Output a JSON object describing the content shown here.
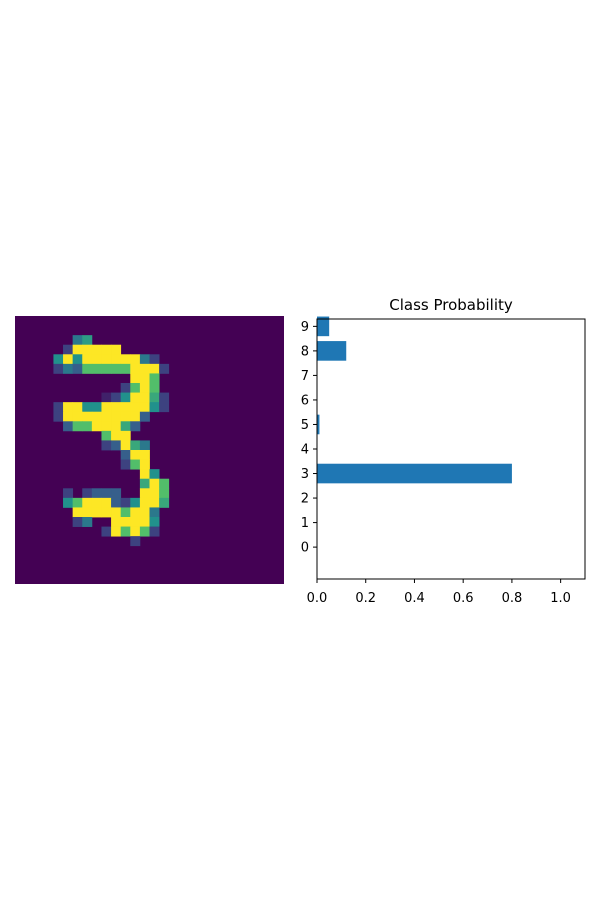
{
  "chart_data": [
    {
      "type": "heatmap",
      "title": "",
      "colormap": "viridis",
      "axes_visible": false,
      "rows": 28,
      "cols": 28,
      "value_scale": "0 to 1",
      "pixels": [
        {
          "r": 2,
          "c": 6,
          "v": 0.4
        },
        {
          "r": 2,
          "c": 7,
          "v": 0.55
        },
        {
          "r": 3,
          "c": 5,
          "v": 0.2
        },
        {
          "r": 3,
          "c": 6,
          "v": 1.0
        },
        {
          "r": 3,
          "c": 7,
          "v": 1.0
        },
        {
          "r": 3,
          "c": 8,
          "v": 1.0
        },
        {
          "r": 3,
          "c": 9,
          "v": 1.0
        },
        {
          "r": 3,
          "c": 10,
          "v": 1.0
        },
        {
          "r": 4,
          "c": 4,
          "v": 0.5
        },
        {
          "r": 4,
          "c": 5,
          "v": 1.0
        },
        {
          "r": 4,
          "c": 6,
          "v": 0.5
        },
        {
          "r": 4,
          "c": 7,
          "v": 1.0
        },
        {
          "r": 4,
          "c": 8,
          "v": 1.0
        },
        {
          "r": 4,
          "c": 9,
          "v": 1.0
        },
        {
          "r": 4,
          "c": 10,
          "v": 1.0
        },
        {
          "r": 4,
          "c": 11,
          "v": 1.0
        },
        {
          "r": 4,
          "c": 12,
          "v": 1.0
        },
        {
          "r": 4,
          "c": 13,
          "v": 0.4
        },
        {
          "r": 4,
          "c": 14,
          "v": 0.2
        },
        {
          "r": 5,
          "c": 4,
          "v": 0.2
        },
        {
          "r": 5,
          "c": 5,
          "v": 0.4
        },
        {
          "r": 5,
          "c": 6,
          "v": 0.3
        },
        {
          "r": 5,
          "c": 7,
          "v": 0.7
        },
        {
          "r": 5,
          "c": 8,
          "v": 0.7
        },
        {
          "r": 5,
          "c": 9,
          "v": 0.7
        },
        {
          "r": 5,
          "c": 10,
          "v": 0.7
        },
        {
          "r": 5,
          "c": 11,
          "v": 0.7
        },
        {
          "r": 5,
          "c": 12,
          "v": 1.0
        },
        {
          "r": 5,
          "c": 13,
          "v": 1.0
        },
        {
          "r": 5,
          "c": 14,
          "v": 1.0
        },
        {
          "r": 5,
          "c": 15,
          "v": 0.2
        },
        {
          "r": 6,
          "c": 12,
          "v": 1.0
        },
        {
          "r": 6,
          "c": 13,
          "v": 1.0
        },
        {
          "r": 6,
          "c": 14,
          "v": 0.7
        },
        {
          "r": 7,
          "c": 11,
          "v": 0.2
        },
        {
          "r": 7,
          "c": 12,
          "v": 0.7
        },
        {
          "r": 7,
          "c": 13,
          "v": 1.0
        },
        {
          "r": 7,
          "c": 14,
          "v": 0.7
        },
        {
          "r": 8,
          "c": 9,
          "v": 0.1
        },
        {
          "r": 8,
          "c": 10,
          "v": 0.2
        },
        {
          "r": 8,
          "c": 11,
          "v": 0.5
        },
        {
          "r": 8,
          "c": 12,
          "v": 1.0
        },
        {
          "r": 8,
          "c": 13,
          "v": 1.0
        },
        {
          "r": 8,
          "c": 14,
          "v": 0.6
        },
        {
          "r": 8,
          "c": 15,
          "v": 0.2
        },
        {
          "r": 9,
          "c": 4,
          "v": 0.2
        },
        {
          "r": 9,
          "c": 5,
          "v": 1.0
        },
        {
          "r": 9,
          "c": 6,
          "v": 1.0
        },
        {
          "r": 9,
          "c": 7,
          "v": 0.5
        },
        {
          "r": 9,
          "c": 8,
          "v": 0.5
        },
        {
          "r": 9,
          "c": 9,
          "v": 1.0
        },
        {
          "r": 9,
          "c": 10,
          "v": 1.0
        },
        {
          "r": 9,
          "c": 11,
          "v": 1.0
        },
        {
          "r": 9,
          "c": 12,
          "v": 1.0
        },
        {
          "r": 9,
          "c": 13,
          "v": 1.0
        },
        {
          "r": 9,
          "c": 14,
          "v": 0.5
        },
        {
          "r": 9,
          "c": 15,
          "v": 0.2
        },
        {
          "r": 10,
          "c": 4,
          "v": 0.2
        },
        {
          "r": 10,
          "c": 5,
          "v": 1.0
        },
        {
          "r": 10,
          "c": 6,
          "v": 1.0
        },
        {
          "r": 10,
          "c": 7,
          "v": 1.0
        },
        {
          "r": 10,
          "c": 8,
          "v": 1.0
        },
        {
          "r": 10,
          "c": 9,
          "v": 1.0
        },
        {
          "r": 10,
          "c": 10,
          "v": 1.0
        },
        {
          "r": 10,
          "c": 11,
          "v": 1.0
        },
        {
          "r": 10,
          "c": 12,
          "v": 1.0
        },
        {
          "r": 10,
          "c": 13,
          "v": 0.3
        },
        {
          "r": 11,
          "c": 5,
          "v": 0.3
        },
        {
          "r": 11,
          "c": 6,
          "v": 0.7
        },
        {
          "r": 11,
          "c": 7,
          "v": 0.7
        },
        {
          "r": 11,
          "c": 8,
          "v": 1.0
        },
        {
          "r": 11,
          "c": 9,
          "v": 1.0
        },
        {
          "r": 11,
          "c": 10,
          "v": 1.0
        },
        {
          "r": 11,
          "c": 11,
          "v": 0.6
        },
        {
          "r": 11,
          "c": 12,
          "v": 0.3
        },
        {
          "r": 12,
          "c": 9,
          "v": 0.7
        },
        {
          "r": 12,
          "c": 10,
          "v": 1.0
        },
        {
          "r": 12,
          "c": 11,
          "v": 1.0
        },
        {
          "r": 13,
          "c": 9,
          "v": 0.2
        },
        {
          "r": 13,
          "c": 10,
          "v": 0.3
        },
        {
          "r": 13,
          "c": 11,
          "v": 1.0
        },
        {
          "r": 13,
          "c": 12,
          "v": 0.6
        },
        {
          "r": 13,
          "c": 13,
          "v": 0.4
        },
        {
          "r": 14,
          "c": 11,
          "v": 0.3
        },
        {
          "r": 14,
          "c": 12,
          "v": 1.0
        },
        {
          "r": 14,
          "c": 13,
          "v": 1.0
        },
        {
          "r": 15,
          "c": 11,
          "v": 0.2
        },
        {
          "r": 15,
          "c": 12,
          "v": 0.7
        },
        {
          "r": 15,
          "c": 13,
          "v": 1.0
        },
        {
          "r": 16,
          "c": 13,
          "v": 1.0
        },
        {
          "r": 16,
          "c": 14,
          "v": 0.5
        },
        {
          "r": 17,
          "c": 13,
          "v": 0.6
        },
        {
          "r": 17,
          "c": 14,
          "v": 1.0
        },
        {
          "r": 17,
          "c": 15,
          "v": 0.7
        },
        {
          "r": 18,
          "c": 5,
          "v": 0.2
        },
        {
          "r": 18,
          "c": 7,
          "v": 0.2
        },
        {
          "r": 18,
          "c": 8,
          "v": 0.3
        },
        {
          "r": 18,
          "c": 9,
          "v": 0.3
        },
        {
          "r": 18,
          "c": 10,
          "v": 0.3
        },
        {
          "r": 18,
          "c": 13,
          "v": 1.0
        },
        {
          "r": 18,
          "c": 14,
          "v": 1.0
        },
        {
          "r": 18,
          "c": 15,
          "v": 0.7
        },
        {
          "r": 19,
          "c": 5,
          "v": 0.5
        },
        {
          "r": 19,
          "c": 6,
          "v": 0.7
        },
        {
          "r": 19,
          "c": 7,
          "v": 1.0
        },
        {
          "r": 19,
          "c": 8,
          "v": 1.0
        },
        {
          "r": 19,
          "c": 9,
          "v": 1.0
        },
        {
          "r": 19,
          "c": 10,
          "v": 0.3
        },
        {
          "r": 19,
          "c": 11,
          "v": 0.2
        },
        {
          "r": 19,
          "c": 12,
          "v": 0.5
        },
        {
          "r": 19,
          "c": 13,
          "v": 1.0
        },
        {
          "r": 19,
          "c": 14,
          "v": 1.0
        },
        {
          "r": 19,
          "c": 15,
          "v": 0.6
        },
        {
          "r": 20,
          "c": 6,
          "v": 1.0
        },
        {
          "r": 20,
          "c": 7,
          "v": 1.0
        },
        {
          "r": 20,
          "c": 8,
          "v": 1.0
        },
        {
          "r": 20,
          "c": 9,
          "v": 1.0
        },
        {
          "r": 20,
          "c": 10,
          "v": 1.0
        },
        {
          "r": 20,
          "c": 11,
          "v": 0.7
        },
        {
          "r": 20,
          "c": 12,
          "v": 1.0
        },
        {
          "r": 20,
          "c": 13,
          "v": 1.0
        },
        {
          "r": 20,
          "c": 14,
          "v": 0.4
        },
        {
          "r": 21,
          "c": 6,
          "v": 0.2
        },
        {
          "r": 21,
          "c": 7,
          "v": 0.4
        },
        {
          "r": 21,
          "c": 10,
          "v": 1.0
        },
        {
          "r": 21,
          "c": 11,
          "v": 1.0
        },
        {
          "r": 21,
          "c": 12,
          "v": 1.0
        },
        {
          "r": 21,
          "c": 13,
          "v": 1.0
        },
        {
          "r": 21,
          "c": 14,
          "v": 0.5
        },
        {
          "r": 22,
          "c": 9,
          "v": 0.2
        },
        {
          "r": 22,
          "c": 10,
          "v": 1.0
        },
        {
          "r": 22,
          "c": 11,
          "v": 0.7
        },
        {
          "r": 22,
          "c": 12,
          "v": 1.0
        },
        {
          "r": 22,
          "c": 13,
          "v": 0.7
        },
        {
          "r": 22,
          "c": 14,
          "v": 0.2
        },
        {
          "r": 23,
          "c": 12,
          "v": 0.2
        }
      ]
    },
    {
      "type": "bar",
      "orientation": "horizontal",
      "title": "Class Probability",
      "categories": [
        "0",
        "1",
        "2",
        "3",
        "4",
        "5",
        "6",
        "7",
        "8",
        "9"
      ],
      "values": [
        0.0,
        0.0,
        0.0,
        0.8,
        0.0,
        0.01,
        0.0,
        0.0,
        0.12,
        0.05
      ],
      "xlim": [
        0,
        1.1
      ],
      "xticks": [
        "0.0",
        "0.2",
        "0.4",
        "0.6",
        "0.8",
        "1.0"
      ],
      "xlabel": "",
      "ylabel": "",
      "bar_color": "#1f77b4"
    }
  ]
}
